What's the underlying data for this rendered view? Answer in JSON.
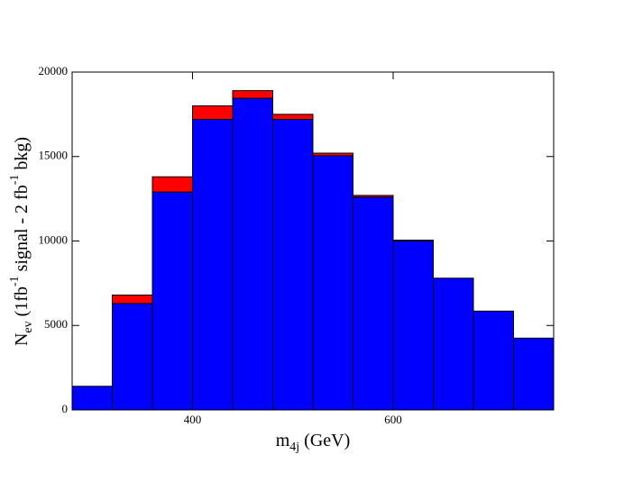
{
  "chart_data": {
    "type": "histogram",
    "x_label": [
      "m",
      "4j",
      " (GeV)"
    ],
    "y_label": [
      "N",
      "ev",
      " (1fb",
      "-1",
      " signal - 2 fb",
      "-1",
      " bkg)"
    ],
    "bins": [
      280,
      320,
      360,
      400,
      440,
      480,
      520,
      560,
      600,
      640,
      680,
      720,
      760
    ],
    "stacked": true,
    "series": [
      {
        "color": "#0000ff",
        "values": [
          1400,
          6300,
          12900,
          17200,
          18450,
          17200,
          15050,
          12600,
          10000,
          7800,
          5850,
          4250
        ]
      },
      {
        "color": "#ff0000",
        "values": [
          0,
          500,
          900,
          800,
          450,
          300,
          150,
          100,
          50,
          0,
          0,
          0
        ]
      }
    ],
    "xlim": [
      280,
      760
    ],
    "xticks": [
      400,
      600
    ],
    "ylim": [
      0,
      20000
    ],
    "yticks": [
      0,
      5000,
      10000,
      15000,
      20000
    ]
  }
}
